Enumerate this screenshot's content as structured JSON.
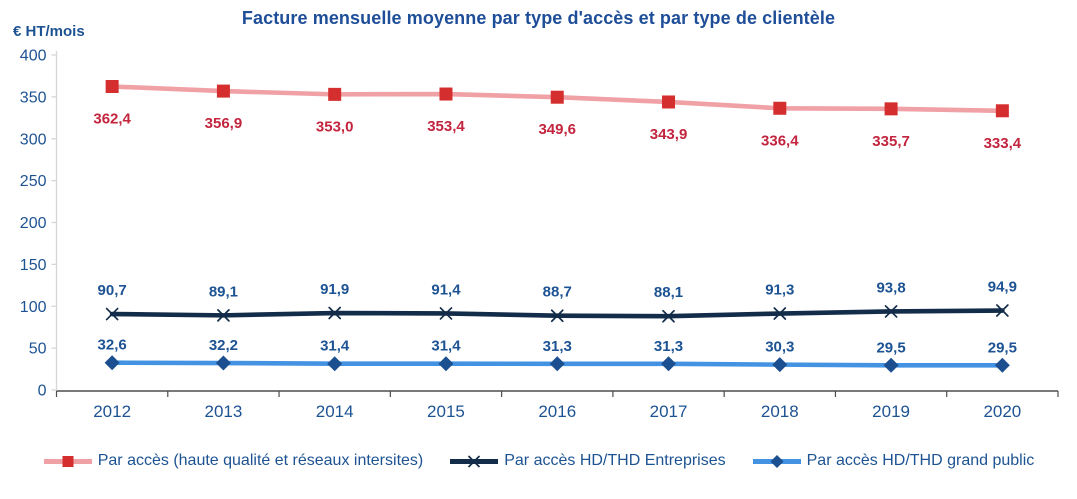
{
  "chart_data": {
    "type": "line",
    "title": "Facture mensuelle moyenne par type d'accès et par type de clientèle",
    "y_unit": "€ HT/mois",
    "title_color": "#1f4e99",
    "categories": [
      "2012",
      "2013",
      "2014",
      "2015",
      "2016",
      "2017",
      "2018",
      "2019",
      "2020"
    ],
    "ylim": [
      0,
      400
    ],
    "y_tick_step": 50,
    "y_tick_labels": [
      "0",
      "50",
      "100",
      "150",
      "200",
      "250",
      "300",
      "350",
      "400"
    ],
    "grid": false,
    "legend_position": "bottom",
    "axis": {
      "tick_label_color": "#1d5393",
      "y_axis_line_color": "#d6d6d6",
      "x_axis_line_color": "#4d4d4d"
    },
    "series": [
      {
        "name": "Par accès (haute qualité et réseaux intersites)",
        "values": [
          362.4,
          356.9,
          353.0,
          353.4,
          349.6,
          343.9,
          336.4,
          335.7,
          333.4
        ],
        "labels": [
          "362,4",
          "356,9",
          "353,0",
          "353,4",
          "349,6",
          "343,9",
          "336,4",
          "335,7",
          "333,4"
        ],
        "line_color": "#f0a1a5",
        "marker": "square",
        "marker_color": "#d42e2e",
        "label_color": "#c3243e",
        "label_position": "below"
      },
      {
        "name": "Par accès HD/THD Entreprises",
        "values": [
          90.7,
          89.1,
          91.9,
          91.4,
          88.7,
          88.1,
          91.3,
          93.8,
          94.9
        ],
        "labels": [
          "90,7",
          "89,1",
          "91,9",
          "91,4",
          "88,7",
          "88,1",
          "91,3",
          "93,8",
          "94,9"
        ],
        "line_color": "#132c49",
        "marker": "x",
        "marker_color": "#132c49",
        "label_color": "#1d5393",
        "label_position": "above"
      },
      {
        "name": "Par accès HD/THD grand public",
        "values": [
          32.6,
          32.2,
          31.4,
          31.4,
          31.3,
          31.3,
          30.3,
          29.5,
          29.5
        ],
        "labels": [
          "32,6",
          "32,2",
          "31,4",
          "31,4",
          "31,3",
          "31,3",
          "30,3",
          "29,5",
          "29,5"
        ],
        "line_color": "#4493e2",
        "marker": "diamond",
        "marker_color": "#1c4f8f",
        "label_color": "#1d5393",
        "label_position": "above"
      }
    ]
  }
}
